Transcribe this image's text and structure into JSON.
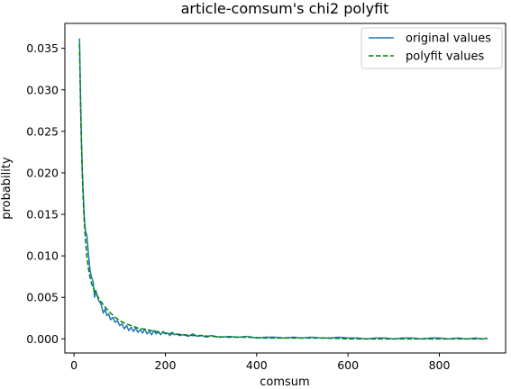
{
  "chart_data": {
    "type": "line",
    "title": "article-comsum's chi2 polyfit",
    "xlabel": "comsum",
    "ylabel": "probability",
    "xlim": [
      -20,
      945
    ],
    "ylim": [
      -0.0017,
      0.038
    ],
    "xticks": [
      0,
      200,
      400,
      600,
      800
    ],
    "yticks": [
      0.0,
      0.005,
      0.01,
      0.015,
      0.02,
      0.025,
      0.03,
      0.035
    ],
    "ytick_labels": [
      "0.000",
      "0.005",
      "0.010",
      "0.015",
      "0.020",
      "0.025",
      "0.030",
      "0.035"
    ],
    "grid": false,
    "legend_position": "top-right",
    "colors": {
      "original": "#1f77b4",
      "polyfit": "#008000"
    },
    "series": [
      {
        "name": "original values",
        "style": "solid",
        "x": [
          12,
          14,
          16,
          18,
          20,
          22,
          24,
          26,
          28,
          30,
          32,
          34,
          36,
          38,
          40,
          42,
          45,
          48,
          51,
          54,
          57,
          60,
          64,
          68,
          72,
          76,
          80,
          85,
          90,
          95,
          100,
          105,
          110,
          115,
          120,
          125,
          130,
          135,
          140,
          145,
          150,
          155,
          160,
          165,
          170,
          175,
          180,
          185,
          190,
          195,
          200,
          205,
          210,
          215,
          220,
          225,
          230,
          240,
          250,
          260,
          270,
          280,
          290,
          300,
          320,
          340,
          360,
          380,
          400,
          420,
          440,
          460,
          480,
          500,
          520,
          540,
          560,
          580,
          600,
          620,
          640,
          660,
          680,
          700,
          720,
          740,
          760,
          780,
          800,
          820,
          840,
          860,
          880,
          895,
          905
        ],
        "y": [
          0.0362,
          0.03,
          0.0245,
          0.0205,
          0.0178,
          0.0152,
          0.0135,
          0.0128,
          0.0125,
          0.0112,
          0.01,
          0.0088,
          0.008,
          0.0075,
          0.0072,
          0.0068,
          0.005,
          0.0058,
          0.0052,
          0.0046,
          0.0044,
          0.004,
          0.0031,
          0.0036,
          0.0028,
          0.003,
          0.0023,
          0.0026,
          0.002,
          0.0022,
          0.0016,
          0.0018,
          0.0012,
          0.0016,
          0.001,
          0.0014,
          0.0009,
          0.0013,
          0.0008,
          0.0011,
          0.0007,
          0.0012,
          0.0006,
          0.0009,
          0.0005,
          0.001,
          0.0006,
          0.0008,
          0.0005,
          0.0009,
          0.0006,
          0.0007,
          0.0004,
          0.0008,
          0.0005,
          0.0006,
          0.0004,
          0.0005,
          0.0003,
          0.0006,
          0.0003,
          0.0004,
          0.0002,
          0.0004,
          0.0002,
          0.0003,
          0.0002,
          0.0003,
          0.0001,
          0.0002,
          0.0002,
          0.0001,
          0.0002,
          0.0001,
          0.0002,
          0.0001,
          0.0001,
          0.0002,
          0.0001,
          0.0001,
          0.0,
          0.0001,
          0.0001,
          0.0,
          0.0001,
          0.0001,
          0.0,
          0.0001,
          0.0001,
          0.0,
          0.0001,
          0.0,
          0.0001,
          0.0,
          0.0001
        ]
      },
      {
        "name": "polyfit values",
        "style": "dashed",
        "x": [
          12,
          14,
          16,
          18,
          20,
          22,
          25,
          28,
          31,
          34,
          37,
          40,
          45,
          50,
          55,
          60,
          70,
          80,
          90,
          100,
          110,
          120,
          130,
          140,
          150,
          160,
          180,
          200,
          220,
          240,
          260,
          280,
          300,
          340,
          380,
          420,
          460,
          500,
          550,
          600,
          650,
          700,
          750,
          800,
          850,
          905
        ],
        "y": [
          0.0355,
          0.029,
          0.024,
          0.02,
          0.017,
          0.0145,
          0.012,
          0.01,
          0.0087,
          0.0077,
          0.007,
          0.0064,
          0.0058,
          0.0053,
          0.0048,
          0.0044,
          0.0037,
          0.0031,
          0.0026,
          0.0022,
          0.0019,
          0.0017,
          0.0015,
          0.0013,
          0.0012,
          0.0011,
          0.0009,
          0.0007,
          0.0006,
          0.0005,
          0.0004,
          0.0004,
          0.0003,
          0.0002,
          0.0002,
          0.0001,
          0.0001,
          0.0001,
          0.0001,
          0.0,
          0.0,
          0.0,
          0.0,
          0.0,
          0.0,
          0.0
        ]
      }
    ]
  }
}
